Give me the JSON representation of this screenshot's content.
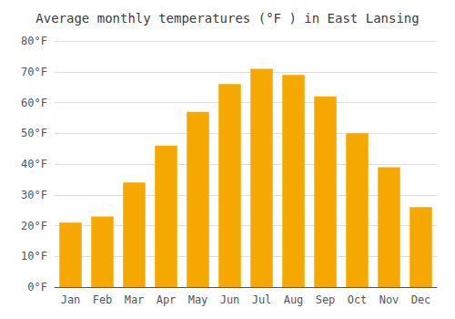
{
  "chart_data": {
    "type": "bar",
    "title": "Average monthly temperatures (°F ) in East Lansing",
    "categories": [
      "Jan",
      "Feb",
      "Mar",
      "Apr",
      "May",
      "Jun",
      "Jul",
      "Aug",
      "Sep",
      "Oct",
      "Nov",
      "Dec"
    ],
    "values": [
      21,
      23,
      34,
      46,
      57,
      66,
      71,
      69,
      62,
      50,
      39,
      26
    ],
    "color": "#F5A800",
    "ylim": [
      0,
      80
    ],
    "yticks": [
      {
        "value": 0,
        "label": "0°F"
      },
      {
        "value": 10,
        "label": "10°F"
      },
      {
        "value": 20,
        "label": "20°F"
      },
      {
        "value": 30,
        "label": "30°F"
      },
      {
        "value": 40,
        "label": "40°F"
      },
      {
        "value": 50,
        "label": "50°F"
      },
      {
        "value": 60,
        "label": "60°F"
      },
      {
        "value": 70,
        "label": "70°F"
      },
      {
        "value": 80,
        "label": "80°F"
      }
    ],
    "grid": true
  }
}
